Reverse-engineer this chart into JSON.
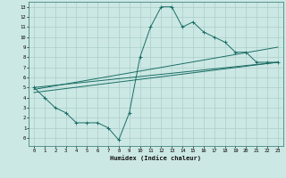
{
  "xlabel": "Humidex (Indice chaleur)",
  "bg_color": "#cce8e4",
  "grid_color": "#aaceca",
  "line_color": "#1a6e65",
  "xlim": [
    -0.5,
    23.5
  ],
  "ylim": [
    -0.8,
    13.5
  ],
  "xticks": [
    0,
    1,
    2,
    3,
    4,
    5,
    6,
    7,
    8,
    9,
    10,
    11,
    12,
    13,
    14,
    15,
    16,
    17,
    18,
    19,
    20,
    21,
    22,
    23
  ],
  "yticks": [
    0,
    1,
    2,
    3,
    4,
    5,
    6,
    7,
    8,
    9,
    10,
    11,
    12,
    13
  ],
  "curve1_x": [
    0,
    1,
    2,
    3,
    4,
    5,
    6,
    7,
    8,
    9,
    10,
    11,
    12,
    13,
    14,
    15,
    16,
    17,
    18,
    19,
    20,
    21,
    22,
    23
  ],
  "curve1_y": [
    5,
    4,
    3,
    2.5,
    1.5,
    1.5,
    1.5,
    1.0,
    -0.2,
    2.5,
    8,
    11,
    13,
    13,
    11,
    11.5,
    10.5,
    10,
    9.5,
    8.5,
    8.5,
    7.5,
    7.5,
    7.5
  ],
  "curve2_x": [
    0,
    23
  ],
  "curve2_y": [
    5.0,
    7.5
  ],
  "curve3_x": [
    0,
    23
  ],
  "curve3_y": [
    4.5,
    7.5
  ],
  "curve4_x": [
    0,
    23
  ],
  "curve4_y": [
    4.8,
    9.0
  ]
}
